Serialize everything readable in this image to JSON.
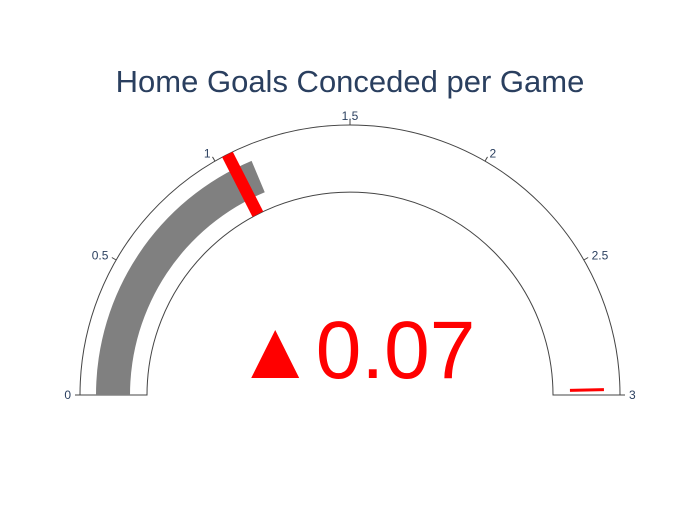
{
  "title": "Home Goals Conceded per Game",
  "chart_data": {
    "type": "gauge",
    "title": "Home Goals Conceded per Game",
    "value": 1.12,
    "reference": 1.05,
    "delta": 0.07,
    "delta_text": "0.07",
    "delta_direction": "increasing",
    "delta_symbol": "▲",
    "range": [
      0,
      3
    ],
    "ticks": [
      0,
      0.5,
      1,
      1.5,
      2,
      2.5,
      3
    ],
    "tick_labels": [
      "0",
      "0.5",
      "1",
      "1.5",
      "2",
      "2.5",
      "3"
    ],
    "threshold_value": 2.98,
    "bar_color": "#808080",
    "delta_color": "#ff0000",
    "threshold_color": "#ff0000",
    "title_color": "#2a3f5f",
    "tick_color": "#2a3f5f"
  }
}
